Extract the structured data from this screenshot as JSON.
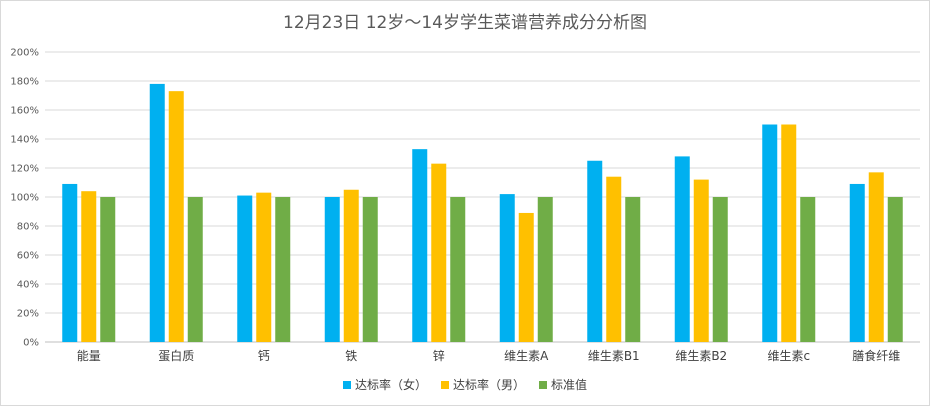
{
  "chart_data": {
    "type": "bar",
    "title": "12月23日 12岁～14岁学生菜谱营养成分分析图",
    "xlabel": "",
    "ylabel": "",
    "ylim": [
      0,
      200
    ],
    "yticks": [
      "0%",
      "20%",
      "40%",
      "60%",
      "80%",
      "100%",
      "120%",
      "140%",
      "160%",
      "180%",
      "200%"
    ],
    "grid": true,
    "legend_position": "bottom",
    "categories": [
      "能量",
      "蛋白质",
      "钙",
      "铁",
      "锌",
      "维生素A",
      "维生素B1",
      "维生素B2",
      "维生素c",
      "膳食纤维"
    ],
    "series": [
      {
        "name": "达标率（女）",
        "color": "#00b0f0",
        "values": [
          109,
          178,
          101,
          100,
          133,
          102,
          125,
          128,
          150,
          109
        ]
      },
      {
        "name": "达标率（男）",
        "color": "#ffc000",
        "values": [
          104,
          173,
          103,
          105,
          123,
          89,
          114,
          112,
          150,
          117
        ]
      },
      {
        "name": "标准值",
        "color": "#70ad47",
        "values": [
          100,
          100,
          100,
          100,
          100,
          100,
          100,
          100,
          100,
          100
        ]
      }
    ]
  }
}
